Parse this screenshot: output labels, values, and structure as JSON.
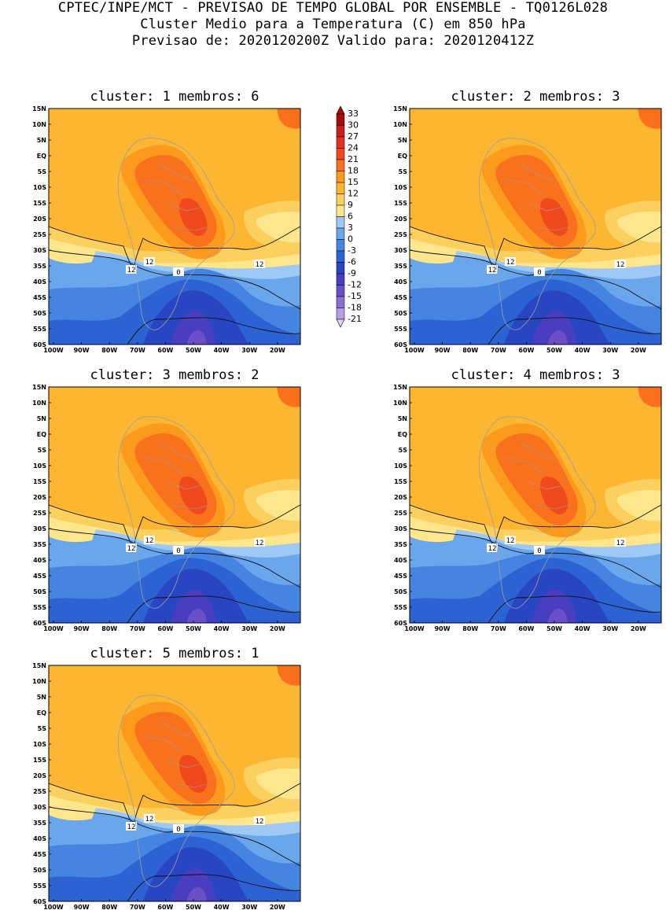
{
  "header": {
    "line1": "CPTEC/INPE/MCT - PREVISAO DE TEMPO GLOBAL POR ENSEMBLE - TQ0126L028",
    "line2": "Cluster Medio para a Temperatura (C) em 850 hPa",
    "line3": "Previsao de: 2020120200Z   Valido para: 2020120412Z"
  },
  "panels": [
    {
      "title": "cluster: 1  membros: 6"
    },
    {
      "title": "cluster: 2  membros: 3"
    },
    {
      "title": "cluster: 3  membros: 2"
    },
    {
      "title": "cluster: 4  membros: 3"
    },
    {
      "title": "cluster: 5  membros: 1"
    }
  ],
  "lat_labels": [
    "15N",
    "10N",
    "5N",
    "EQ",
    "5S",
    "10S",
    "15S",
    "20S",
    "25S",
    "30S",
    "35S",
    "40S",
    "45S",
    "50S",
    "55S",
    "60S"
  ],
  "lon_labels": [
    "100W",
    "90W",
    "80W",
    "70W",
    "60W",
    "50W",
    "40W",
    "30W",
    "20W"
  ],
  "contour_labels": [
    "12",
    "12",
    "12",
    "0"
  ],
  "colorbar": {
    "levels": [
      "33",
      "30",
      "27",
      "24",
      "21",
      "18",
      "15",
      "12",
      "9",
      "6",
      "3",
      "0",
      "-3",
      "-6",
      "-9",
      "-12",
      "-15",
      "-18",
      "-21"
    ],
    "colors": [
      "#a50b0b",
      "#c81e1e",
      "#e23222",
      "#f04a1c",
      "#f9711c",
      "#fb9a1c",
      "#fdb631",
      "#fcd05e",
      "#fde68c",
      "#9ec9f5",
      "#6aa6ec",
      "#4584e0",
      "#2c62d2",
      "#2845c2",
      "#4a3ec0",
      "#6a4fc9",
      "#8b6fd4",
      "#b39de3",
      "#dcd2f2"
    ]
  }
}
